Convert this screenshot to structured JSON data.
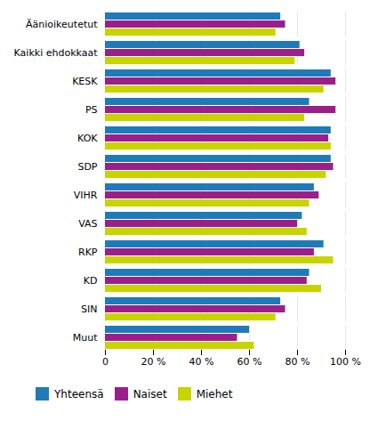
{
  "chart_data": {
    "type": "bar",
    "orientation": "horizontal",
    "categories": [
      "Äänioikeutetut",
      "Kaikki ehdokkaat",
      "KESK",
      "PS",
      "KOK",
      "SDP",
      "VIHR",
      "VAS",
      "RKP",
      "KD",
      "SIN",
      "Muut"
    ],
    "series": [
      {
        "name": "Yhteensä",
        "color": "#1F7BB8",
        "values": [
          73,
          81,
          94,
          85,
          94,
          94,
          87,
          82,
          91,
          85,
          73,
          60
        ]
      },
      {
        "name": "Naiset",
        "color": "#9B1F8A",
        "values": [
          75,
          83,
          96,
          96,
          93,
          95,
          89,
          80,
          87,
          84,
          75,
          55
        ]
      },
      {
        "name": "Miehet",
        "color": "#C8D400",
        "values": [
          71,
          79,
          91,
          83,
          94,
          92,
          85,
          84,
          95,
          90,
          71,
          62
        ]
      }
    ],
    "xlim": [
      0,
      100
    ],
    "xticks": [
      0,
      {
        "value": 20,
        "label": "20 %"
      },
      {
        "value": 40,
        "label": "40 %"
      },
      {
        "value": 60,
        "label": "60 %"
      },
      {
        "value": 80,
        "label": "80 %"
      },
      {
        "value": 100,
        "label": "100 %"
      }
    ],
    "grid": true,
    "legend": "bottom"
  }
}
